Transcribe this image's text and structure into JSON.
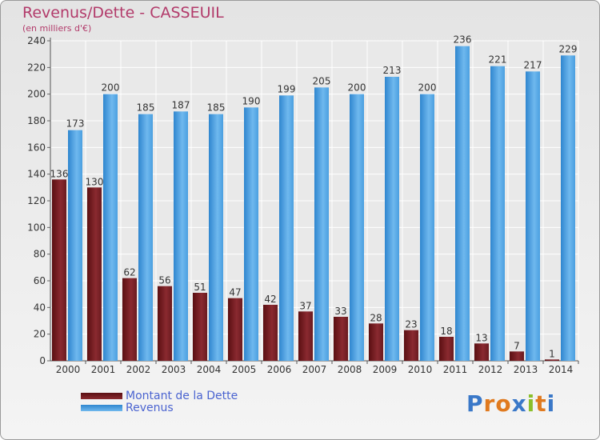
{
  "header": {
    "title": "Revenus/Dette - CASSEUIL",
    "subtitle": "(en milliers d'€)"
  },
  "legend": {
    "debt_label": "Montant de la Dette",
    "revenue_label": "Revenus"
  },
  "colors": {
    "debt": "#7a1f24",
    "revenue": "#4ea3e6"
  },
  "logo": {
    "text": "Proxiti"
  },
  "chart_data": {
    "type": "bar",
    "categories": [
      "2000",
      "2001",
      "2002",
      "2003",
      "2004",
      "2005",
      "2006",
      "2007",
      "2008",
      "2009",
      "2010",
      "2011",
      "2012",
      "2013",
      "2014"
    ],
    "series": [
      {
        "name": "Montant de la Dette",
        "values": [
          136,
          130,
          62,
          56,
          51,
          47,
          42,
          37,
          33,
          28,
          23,
          18,
          13,
          7,
          1
        ]
      },
      {
        "name": "Revenus",
        "values": [
          173,
          200,
          185,
          187,
          185,
          190,
          199,
          205,
          200,
          213,
          200,
          236,
          221,
          217,
          229
        ]
      }
    ],
    "ylim": [
      0,
      240
    ],
    "yticks": [
      0,
      20,
      40,
      60,
      80,
      100,
      120,
      140,
      160,
      180,
      200,
      220,
      240
    ],
    "grid": true,
    "legend_position": "bottom-left"
  }
}
